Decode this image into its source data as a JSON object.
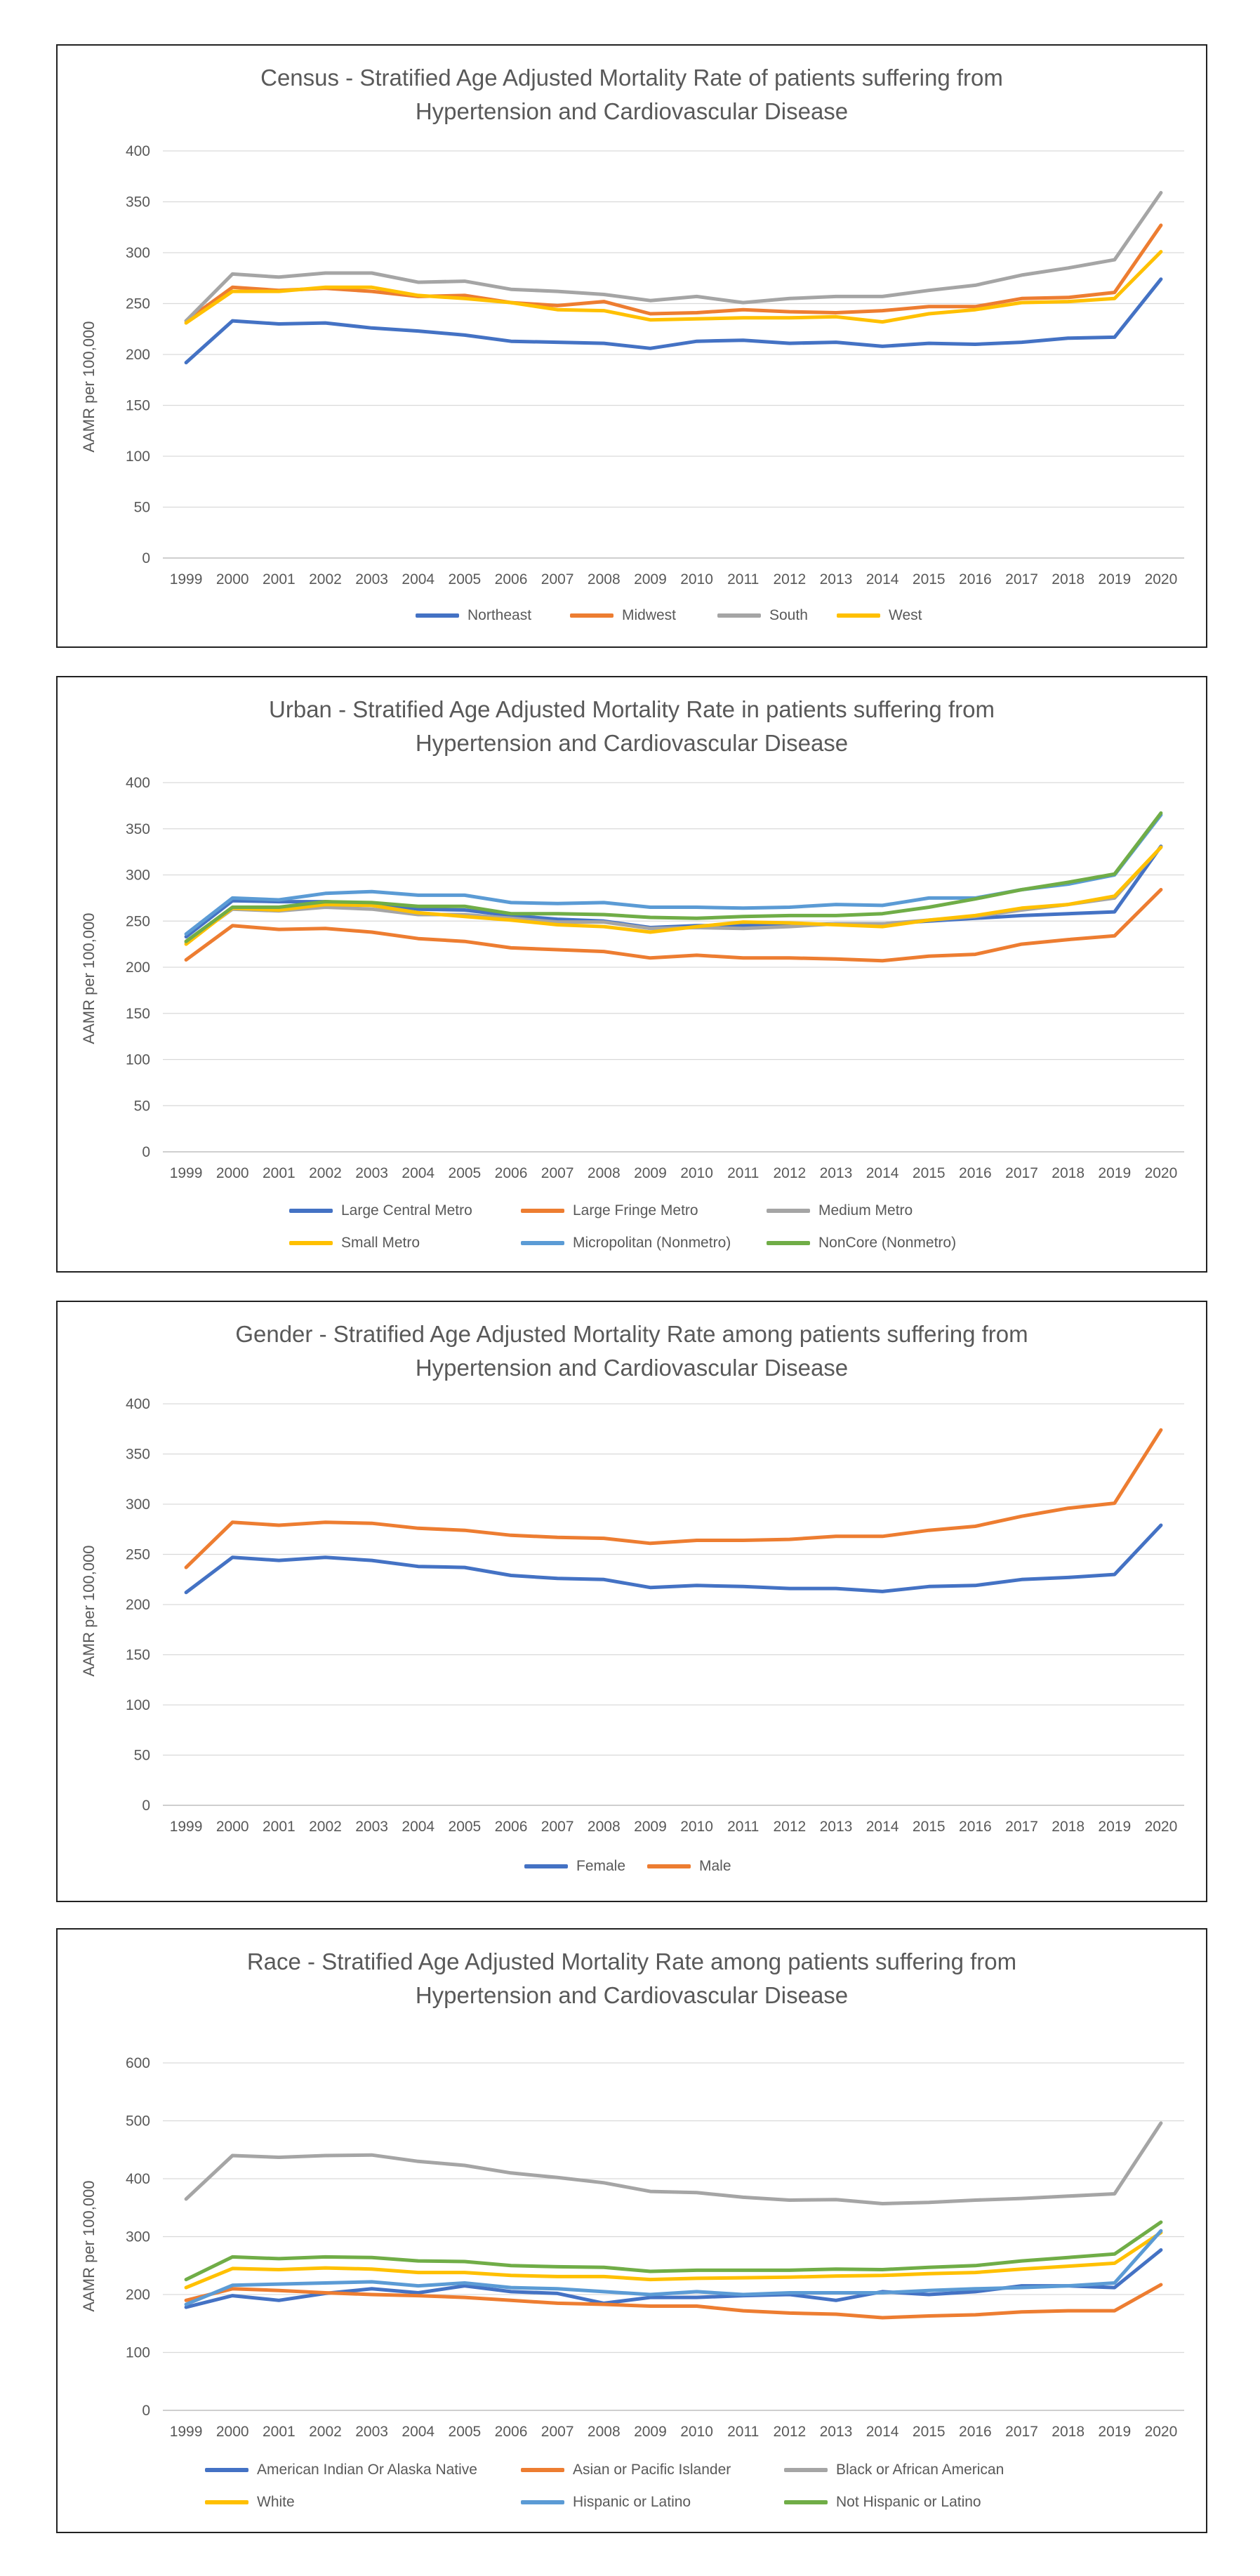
{
  "chart_data": [
    {
      "type": "line",
      "title": "Census - Stratified Age Adjusted Mortality Rate of patients suffering from Hypertension and Cardiovascular Disease",
      "title_lines": [
        "Census - Stratified Age Adjusted Mortality Rate of patients suffering from",
        "Hypertension and Cardiovascular Disease"
      ],
      "xlabel": "",
      "ylabel": "AAMR per 100,000",
      "ylim": [
        0,
        400
      ],
      "yticks": [
        0,
        50,
        100,
        150,
        200,
        250,
        300,
        350,
        400
      ],
      "grid": true,
      "legend": "bottom",
      "categories": [
        "1999",
        "2000",
        "2001",
        "2002",
        "2003",
        "2004",
        "2005",
        "2006",
        "2007",
        "2008",
        "2009",
        "2010",
        "2011",
        "2012",
        "2013",
        "2014",
        "2015",
        "2016",
        "2017",
        "2018",
        "2019",
        "2020"
      ],
      "series": [
        {
          "name": "Northeast",
          "color": "#4472c4",
          "values": [
            192,
            233,
            230,
            231,
            226,
            223,
            219,
            213,
            212,
            211,
            206,
            213,
            214,
            211,
            212,
            208,
            211,
            210,
            212,
            216,
            217,
            274
          ]
        },
        {
          "name": "Midwest",
          "color": "#ed7d31",
          "values": [
            233,
            266,
            263,
            265,
            262,
            257,
            258,
            251,
            248,
            252,
            240,
            241,
            244,
            242,
            241,
            243,
            247,
            247,
            255,
            256,
            261,
            327
          ]
        },
        {
          "name": "South",
          "color": "#a5a5a5",
          "values": [
            233,
            279,
            276,
            280,
            280,
            271,
            272,
            264,
            262,
            259,
            253,
            257,
            251,
            255,
            257,
            257,
            263,
            268,
            278,
            285,
            293,
            359
          ]
        },
        {
          "name": "West",
          "color": "#ffc000",
          "values": [
            231,
            262,
            262,
            266,
            266,
            258,
            255,
            251,
            244,
            243,
            234,
            235,
            236,
            236,
            237,
            232,
            240,
            244,
            251,
            252,
            255,
            301
          ]
        }
      ]
    },
    {
      "type": "line",
      "title": "Urban - Stratified Age Adjusted Mortality Rate in patients suffering from Hypertension and Cardiovascular Disease",
      "title_lines": [
        "Urban - Stratified Age Adjusted Mortality Rate in patients suffering from",
        "Hypertension and Cardiovascular Disease"
      ],
      "xlabel": "",
      "ylabel": "AAMR per 100,000",
      "ylim": [
        0,
        400
      ],
      "yticks": [
        0,
        50,
        100,
        150,
        200,
        250,
        300,
        350,
        400
      ],
      "grid": true,
      "legend": "bottom",
      "categories": [
        "1999",
        "2000",
        "2001",
        "2002",
        "2003",
        "2004",
        "2005",
        "2006",
        "2007",
        "2008",
        "2009",
        "2010",
        "2011",
        "2012",
        "2013",
        "2014",
        "2015",
        "2016",
        "2017",
        "2018",
        "2019",
        "2020"
      ],
      "series": [
        {
          "name": "Large Central Metro",
          "color": "#4472c4",
          "values": [
            233,
            272,
            271,
            271,
            269,
            263,
            262,
            256,
            252,
            250,
            243,
            245,
            245,
            246,
            247,
            247,
            250,
            253,
            256,
            258,
            260,
            331
          ]
        },
        {
          "name": "Large Fringe Metro",
          "color": "#ed7d31",
          "values": [
            208,
            245,
            241,
            242,
            238,
            231,
            228,
            221,
            219,
            217,
            210,
            213,
            210,
            210,
            209,
            207,
            212,
            214,
            225,
            230,
            234,
            284
          ]
        },
        {
          "name": "Medium Metro",
          "color": "#a5a5a5",
          "values": [
            227,
            263,
            261,
            265,
            263,
            257,
            257,
            253,
            249,
            249,
            242,
            243,
            242,
            244,
            247,
            247,
            251,
            255,
            262,
            268,
            275,
            330
          ]
        },
        {
          "name": "Small Metro",
          "color": "#ffc000",
          "values": [
            225,
            264,
            262,
            268,
            267,
            259,
            255,
            251,
            246,
            244,
            238,
            244,
            249,
            248,
            246,
            244,
            251,
            256,
            264,
            268,
            277,
            330
          ]
        },
        {
          "name": "Micropolitan (Nonmetro)",
          "color": "#5b9bd5",
          "values": [
            236,
            275,
            273,
            280,
            282,
            278,
            278,
            270,
            269,
            270,
            265,
            265,
            264,
            265,
            268,
            267,
            275,
            275,
            284,
            290,
            300,
            365
          ]
        },
        {
          "name": "NonCore (Nonmetro)",
          "color": "#70ad47",
          "values": [
            228,
            265,
            265,
            271,
            270,
            266,
            266,
            258,
            258,
            257,
            254,
            253,
            255,
            256,
            256,
            258,
            265,
            274,
            284,
            292,
            301,
            367
          ]
        }
      ]
    },
    {
      "type": "line",
      "title": "Gender - Stratified Age Adjusted Mortality Rate among patients suffering from Hypertension and Cardiovascular Disease",
      "title_lines": [
        "Gender - Stratified Age Adjusted Mortality Rate among patients suffering from",
        "Hypertension and Cardiovascular Disease"
      ],
      "xlabel": "",
      "ylabel": "AAMR per 100,000",
      "ylim": [
        0,
        400
      ],
      "yticks": [
        0,
        50,
        100,
        150,
        200,
        250,
        300,
        350,
        400
      ],
      "grid": true,
      "legend": "bottom",
      "categories": [
        "1999",
        "2000",
        "2001",
        "2002",
        "2003",
        "2004",
        "2005",
        "2006",
        "2007",
        "2008",
        "2009",
        "2010",
        "2011",
        "2012",
        "2013",
        "2014",
        "2015",
        "2016",
        "2017",
        "2018",
        "2019",
        "2020"
      ],
      "series": [
        {
          "name": "Female",
          "color": "#4472c4",
          "values": [
            212,
            247,
            244,
            247,
            244,
            238,
            237,
            229,
            226,
            225,
            217,
            219,
            218,
            216,
            216,
            213,
            218,
            219,
            225,
            227,
            230,
            279
          ]
        },
        {
          "name": "Male",
          "color": "#ed7d31",
          "values": [
            237,
            282,
            279,
            282,
            281,
            276,
            274,
            269,
            267,
            266,
            261,
            264,
            264,
            265,
            268,
            268,
            274,
            278,
            288,
            296,
            301,
            374
          ]
        }
      ]
    },
    {
      "type": "line",
      "title": "Race - Stratified Age Adjusted Mortality Rate among patients suffering from Hypertension and Cardiovascular Disease",
      "title_lines": [
        "Race - Stratified Age Adjusted Mortality Rate among patients suffering from",
        "Hypertension and Cardiovascular Disease"
      ],
      "xlabel": "",
      "ylabel": "AAMR per 100,000",
      "ylim": [
        0,
        600
      ],
      "yticks": [
        0,
        100,
        200,
        300,
        400,
        500,
        600
      ],
      "grid": true,
      "legend": "bottom",
      "categories": [
        "1999",
        "2000",
        "2001",
        "2002",
        "2003",
        "2004",
        "2005",
        "2006",
        "2007",
        "2008",
        "2009",
        "2010",
        "2011",
        "2012",
        "2013",
        "2014",
        "2015",
        "2016",
        "2017",
        "2018",
        "2019",
        "2020"
      ],
      "series": [
        {
          "name": "American Indian Or Alaska Native",
          "color": "#4472c4",
          "values": [
            178,
            198,
            190,
            202,
            210,
            203,
            215,
            205,
            202,
            185,
            195,
            195,
            198,
            200,
            190,
            205,
            200,
            205,
            215,
            215,
            212,
            277
          ]
        },
        {
          "name": "Asian or Pacific Islander",
          "color": "#ed7d31",
          "values": [
            190,
            210,
            207,
            203,
            200,
            198,
            195,
            190,
            185,
            183,
            180,
            180,
            172,
            168,
            166,
            160,
            163,
            165,
            170,
            172,
            172,
            217
          ]
        },
        {
          "name": "Black or African American",
          "color": "#a5a5a5",
          "values": [
            365,
            440,
            437,
            440,
            441,
            430,
            423,
            410,
            402,
            393,
            378,
            376,
            368,
            363,
            364,
            357,
            359,
            363,
            366,
            370,
            374,
            496
          ]
        },
        {
          "name": "White",
          "color": "#ffc000",
          "values": [
            212,
            245,
            243,
            246,
            244,
            238,
            238,
            233,
            231,
            231,
            226,
            228,
            229,
            230,
            232,
            233,
            236,
            238,
            244,
            249,
            254,
            307
          ]
        },
        {
          "name": "Hispanic or Latino",
          "color": "#5b9bd5",
          "values": [
            183,
            216,
            218,
            220,
            222,
            215,
            220,
            212,
            210,
            205,
            200,
            205,
            200,
            203,
            203,
            203,
            207,
            210,
            212,
            215,
            220,
            310
          ]
        },
        {
          "name": "Not Hispanic or Latino",
          "color": "#70ad47",
          "values": [
            226,
            265,
            262,
            265,
            264,
            258,
            257,
            250,
            248,
            247,
            240,
            242,
            242,
            242,
            244,
            243,
            247,
            250,
            258,
            264,
            270,
            325
          ]
        }
      ]
    }
  ]
}
